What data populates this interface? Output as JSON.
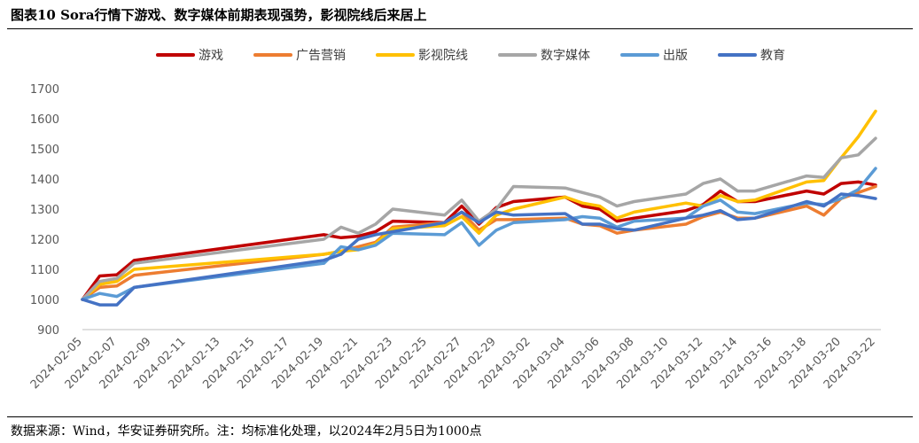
{
  "figure": {
    "title": "图表10 Sora行情下游戏、数字媒体前期表现强势，影视院线后来居上",
    "source": "数据来源：Wind，华安证券研究所。注：均标准化处理，以2024年2月5日为1000点"
  },
  "chart_data": {
    "type": "line",
    "title": "",
    "xlabel": "",
    "ylabel": "",
    "ylim": [
      900,
      1700
    ],
    "yticks": [
      900,
      1000,
      1100,
      1200,
      1300,
      1400,
      1500,
      1600,
      1700
    ],
    "grid": false,
    "legend_position": "top-center",
    "x": [
      "2024-02-05",
      "2024-02-06",
      "2024-02-07",
      "2024-02-08",
      "2024-02-19",
      "2024-02-20",
      "2024-02-21",
      "2024-02-22",
      "2024-02-23",
      "2024-02-26",
      "2024-02-27",
      "2024-02-28",
      "2024-02-29",
      "2024-03-01",
      "2024-03-04",
      "2024-03-05",
      "2024-03-06",
      "2024-03-07",
      "2024-03-08",
      "2024-03-11",
      "2024-03-12",
      "2024-03-13",
      "2024-03-14",
      "2024-03-15",
      "2024-03-18",
      "2024-03-19",
      "2024-03-20",
      "2024-03-21",
      "2024-03-22"
    ],
    "xtick_labels": [
      "2024-02-05",
      "2024-02-07",
      "2024-02-09",
      "2024-02-11",
      "2024-02-13",
      "2024-02-15",
      "2024-02-17",
      "2024-02-19",
      "2024-02-21",
      "2024-02-23",
      "2024-02-25",
      "2024-02-27",
      "2024-02-29",
      "2024-03-02",
      "2024-03-04",
      "2024-03-06",
      "2024-03-08",
      "2024-03-10",
      "2024-03-12",
      "2024-03-14",
      "2024-03-16",
      "2024-03-18",
      "2024-03-20",
      "2024-03-22"
    ],
    "series": [
      {
        "name": "游戏",
        "color": "#c00000",
        "values": [
          1000,
          1078,
          1082,
          1130,
          1215,
          1205,
          1210,
          1225,
          1260,
          1255,
          1310,
          1250,
          1305,
          1325,
          1340,
          1310,
          1300,
          1260,
          1270,
          1295,
          1315,
          1360,
          1325,
          1325,
          1360,
          1350,
          1385,
          1390,
          1380
        ]
      },
      {
        "name": "广告营销",
        "color": "#ed7d31",
        "values": [
          1000,
          1040,
          1045,
          1080,
          1150,
          1160,
          1175,
          1190,
          1240,
          1255,
          1290,
          1230,
          1265,
          1265,
          1270,
          1250,
          1245,
          1220,
          1230,
          1250,
          1275,
          1290,
          1270,
          1270,
          1310,
          1280,
          1335,
          1355,
          1375
        ]
      },
      {
        "name": "影视院线",
        "color": "#ffc000",
        "values": [
          1000,
          1050,
          1060,
          1100,
          1150,
          1160,
          1165,
          1185,
          1235,
          1245,
          1275,
          1220,
          1280,
          1300,
          1340,
          1320,
          1310,
          1270,
          1290,
          1320,
          1310,
          1345,
          1325,
          1330,
          1390,
          1395,
          1470,
          1540,
          1625
        ]
      },
      {
        "name": "数字媒体",
        "color": "#a6a6a6",
        "values": [
          1000,
          1060,
          1070,
          1120,
          1200,
          1240,
          1220,
          1250,
          1300,
          1280,
          1330,
          1260,
          1300,
          1375,
          1370,
          1355,
          1340,
          1310,
          1325,
          1350,
          1385,
          1400,
          1360,
          1360,
          1410,
          1405,
          1470,
          1480,
          1535
        ]
      },
      {
        "name": "出版",
        "color": "#5b9bd5",
        "values": [
          1000,
          1020,
          1010,
          1040,
          1120,
          1175,
          1165,
          1180,
          1220,
          1215,
          1255,
          1180,
          1230,
          1255,
          1265,
          1275,
          1270,
          1240,
          1260,
          1270,
          1310,
          1330,
          1290,
          1285,
          1320,
          1315,
          1335,
          1365,
          1435
        ]
      },
      {
        "name": "教育",
        "color": "#4472c4",
        "values": [
          1000,
          982,
          982,
          1040,
          1130,
          1150,
          1200,
          1215,
          1225,
          1255,
          1290,
          1255,
          1290,
          1280,
          1285,
          1250,
          1250,
          1235,
          1230,
          1270,
          1280,
          1295,
          1265,
          1270,
          1325,
          1310,
          1350,
          1345,
          1335
        ]
      }
    ]
  }
}
